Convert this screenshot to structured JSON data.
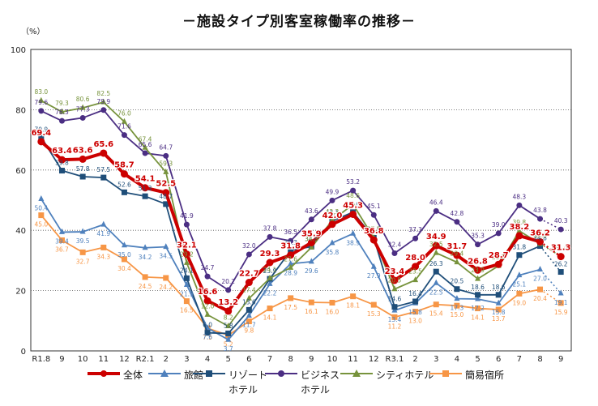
{
  "chart_data": {
    "type": "line",
    "title": "－施設タイプ別客室稼働率の推移－",
    "ylabel": "（%）",
    "xlabel": "",
    "ylim": [
      0,
      100
    ],
    "yticks": [
      0,
      20,
      40,
      60,
      80,
      100
    ],
    "grid": true,
    "legend_position": "bottom",
    "categories": [
      "R1.8",
      "9",
      "10",
      "11",
      "12",
      "R2.1",
      "2",
      "3",
      "4",
      "5",
      "6",
      "7",
      "8",
      "9",
      "10",
      "11",
      "12",
      "R3.1",
      "2",
      "3",
      "4",
      "5",
      "6",
      "7",
      "8",
      "9"
    ],
    "series": [
      {
        "name": "全体",
        "color": "#cc0000",
        "marker": "circle",
        "values": [
          69.4,
          63.4,
          63.6,
          65.6,
          58.7,
          54.1,
          52.5,
          32.1,
          16.6,
          13.2,
          22.7,
          29.3,
          31.8,
          35.9,
          42.0,
          45.3,
          36.8,
          23.4,
          28.0,
          34.9,
          31.7,
          26.8,
          28.7,
          38.2,
          36.2,
          31.3
        ]
      },
      {
        "name": "旅館",
        "color": "#4f81bd",
        "marker": "triangle",
        "values": [
          50.4,
          39.4,
          39.5,
          41.9,
          35.0,
          34.2,
          34.5,
          21.9,
          7.6,
          3.7,
          11.7,
          22.2,
          28.9,
          29.6,
          35.8,
          38.9,
          27.9,
          13.4,
          15.8,
          22.5,
          17.3,
          17.2,
          15.8,
          25.1,
          27.0,
          19.1
        ]
      },
      {
        "name": "リゾートホテル",
        "color": "#1f4e79",
        "marker": "square",
        "values": [
          70.9,
          59.8,
          57.8,
          57.5,
          52.6,
          51.3,
          48.7,
          24.1,
          6.0,
          5.8,
          13.6,
          23.9,
          33.3,
          34.6,
          43.1,
          46.0,
          37.5,
          14.6,
          16.4,
          26.3,
          20.5,
          18.6,
          18.6,
          31.8,
          34.8,
          26.2
        ]
      },
      {
        "name": "ビジネスホテル",
        "color": "#4b2e83",
        "marker": "circle",
        "values": [
          79.6,
          76.3,
          77.3,
          79.9,
          71.6,
          65.6,
          64.7,
          41.9,
          24.7,
          20.2,
          32.0,
          37.8,
          36.5,
          43.6,
          49.9,
          53.2,
          45.1,
          32.4,
          37.3,
          46.4,
          42.8,
          35.3,
          39.0,
          48.3,
          43.8,
          40.3
        ]
      },
      {
        "name": "シティホテル",
        "color": "#77933c",
        "marker": "triangle",
        "values": [
          83.0,
          79.3,
          80.6,
          82.5,
          76.0,
          67.4,
          59.3,
          29.2,
          12.0,
          8.2,
          17.4,
          24.1,
          27.6,
          34.3,
          43.3,
          48.6,
          37.5,
          20.5,
          23.5,
          32.5,
          29.4,
          23.9,
          28.2,
          39.8,
          35.5,
          31.4
        ]
      },
      {
        "name": "簡易宿所",
        "color": "#f79646",
        "marker": "square",
        "values": [
          45.0,
          36.7,
          32.7,
          34.3,
          30.4,
          24.5,
          24.2,
          16.5,
          7.5,
          5.2,
          9.8,
          14.1,
          17.5,
          16.1,
          16.0,
          18.1,
          15.3,
          11.2,
          13.0,
          15.4,
          15.0,
          14.1,
          13.7,
          19.0,
          20.4,
          15.9
        ]
      }
    ],
    "emphasis": "全体 series drawn bold red with bold value labels; final (9) points connected with dotted segments"
  },
  "legend": [
    {
      "label": "全体"
    },
    {
      "label": "旅館"
    },
    {
      "label": "リゾート\nホテル"
    },
    {
      "label": "ビジネス\nホテル"
    },
    {
      "label": "シティホテル"
    },
    {
      "label": "簡易宿所"
    }
  ]
}
